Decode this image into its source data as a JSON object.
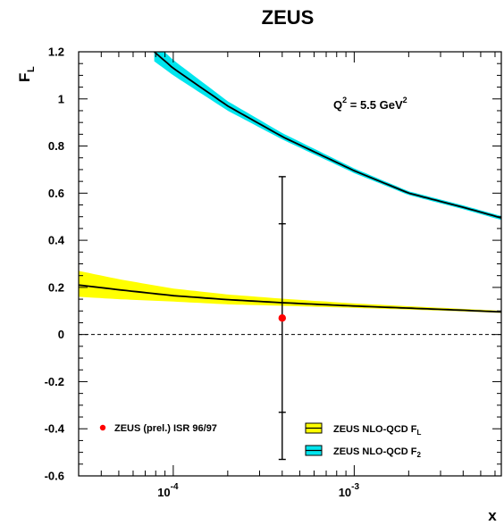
{
  "chart_data": {
    "type": "line",
    "title": "ZEUS",
    "xlabel": "x",
    "ylabel": "F_L",
    "xscale": "log",
    "xlim": [
      3e-05,
      0.0065
    ],
    "ylim": [
      -0.6,
      1.2
    ],
    "y_ticks": [
      "-0.6",
      "-0.4",
      "-0.2",
      "0",
      "0.2",
      "0.4",
      "0.6",
      "0.8",
      "1",
      "1.2"
    ],
    "x_ticks": [
      {
        "base": "10",
        "exp": "-4",
        "value": 0.0001
      },
      {
        "base": "10",
        "exp": "-3",
        "value": 0.001
      }
    ],
    "annotation": {
      "q": "Q",
      "q_sup": "2",
      "mid": " = 5.5 GeV",
      "unit_sup": "2"
    },
    "zero_line": "dashed",
    "series": [
      {
        "name": "ZEUS NLO-QCD F_L",
        "kind": "band",
        "band_color": "#ffff00",
        "line_color": "#000000",
        "x": [
          3e-05,
          5e-05,
          0.0001,
          0.0002,
          0.0004,
          0.001,
          0.002,
          0.004,
          0.0065
        ],
        "y": [
          0.21,
          0.19,
          0.165,
          0.148,
          0.135,
          0.121,
          0.112,
          0.103,
          0.096
        ],
        "y_low": [
          0.16,
          0.15,
          0.14,
          0.128,
          0.122,
          0.113,
          0.106,
          0.098,
          0.092
        ],
        "y_high": [
          0.27,
          0.235,
          0.195,
          0.17,
          0.152,
          0.132,
          0.12,
          0.109,
          0.101
        ]
      },
      {
        "name": "ZEUS NLO-QCD F_2",
        "kind": "band",
        "band_color": "#00e5ee",
        "line_color": "#000000",
        "x": [
          7.85e-05,
          0.0001,
          0.0002,
          0.0004,
          0.001,
          0.002,
          0.004,
          0.0065
        ],
        "y": [
          1.2,
          1.13,
          0.97,
          0.84,
          0.695,
          0.6,
          0.54,
          0.495
        ],
        "y_low": [
          1.16,
          1.1,
          0.95,
          0.828,
          0.685,
          0.592,
          0.532,
          0.486
        ],
        "y_high": [
          1.24,
          1.165,
          0.99,
          0.855,
          0.705,
          0.608,
          0.548,
          0.503
        ]
      },
      {
        "name": "ZEUS (prel.) ISR 96/97",
        "kind": "point",
        "color": "#ff0000",
        "x": [
          0.0004
        ],
        "y": [
          0.07
        ],
        "err_stat": [
          0.4
        ],
        "err_total_low": [
          0.6
        ],
        "err_total_high": [
          0.6
        ]
      }
    ],
    "legend": {
      "points_label": "ZEUS (prel.) ISR 96/97",
      "fl_label": "ZEUS NLO-QCD F",
      "fl_sub": "L",
      "f2_label": "ZEUS NLO-QCD F",
      "f2_sub": "2",
      "y_label_main": "F",
      "y_label_sub": "L"
    }
  }
}
